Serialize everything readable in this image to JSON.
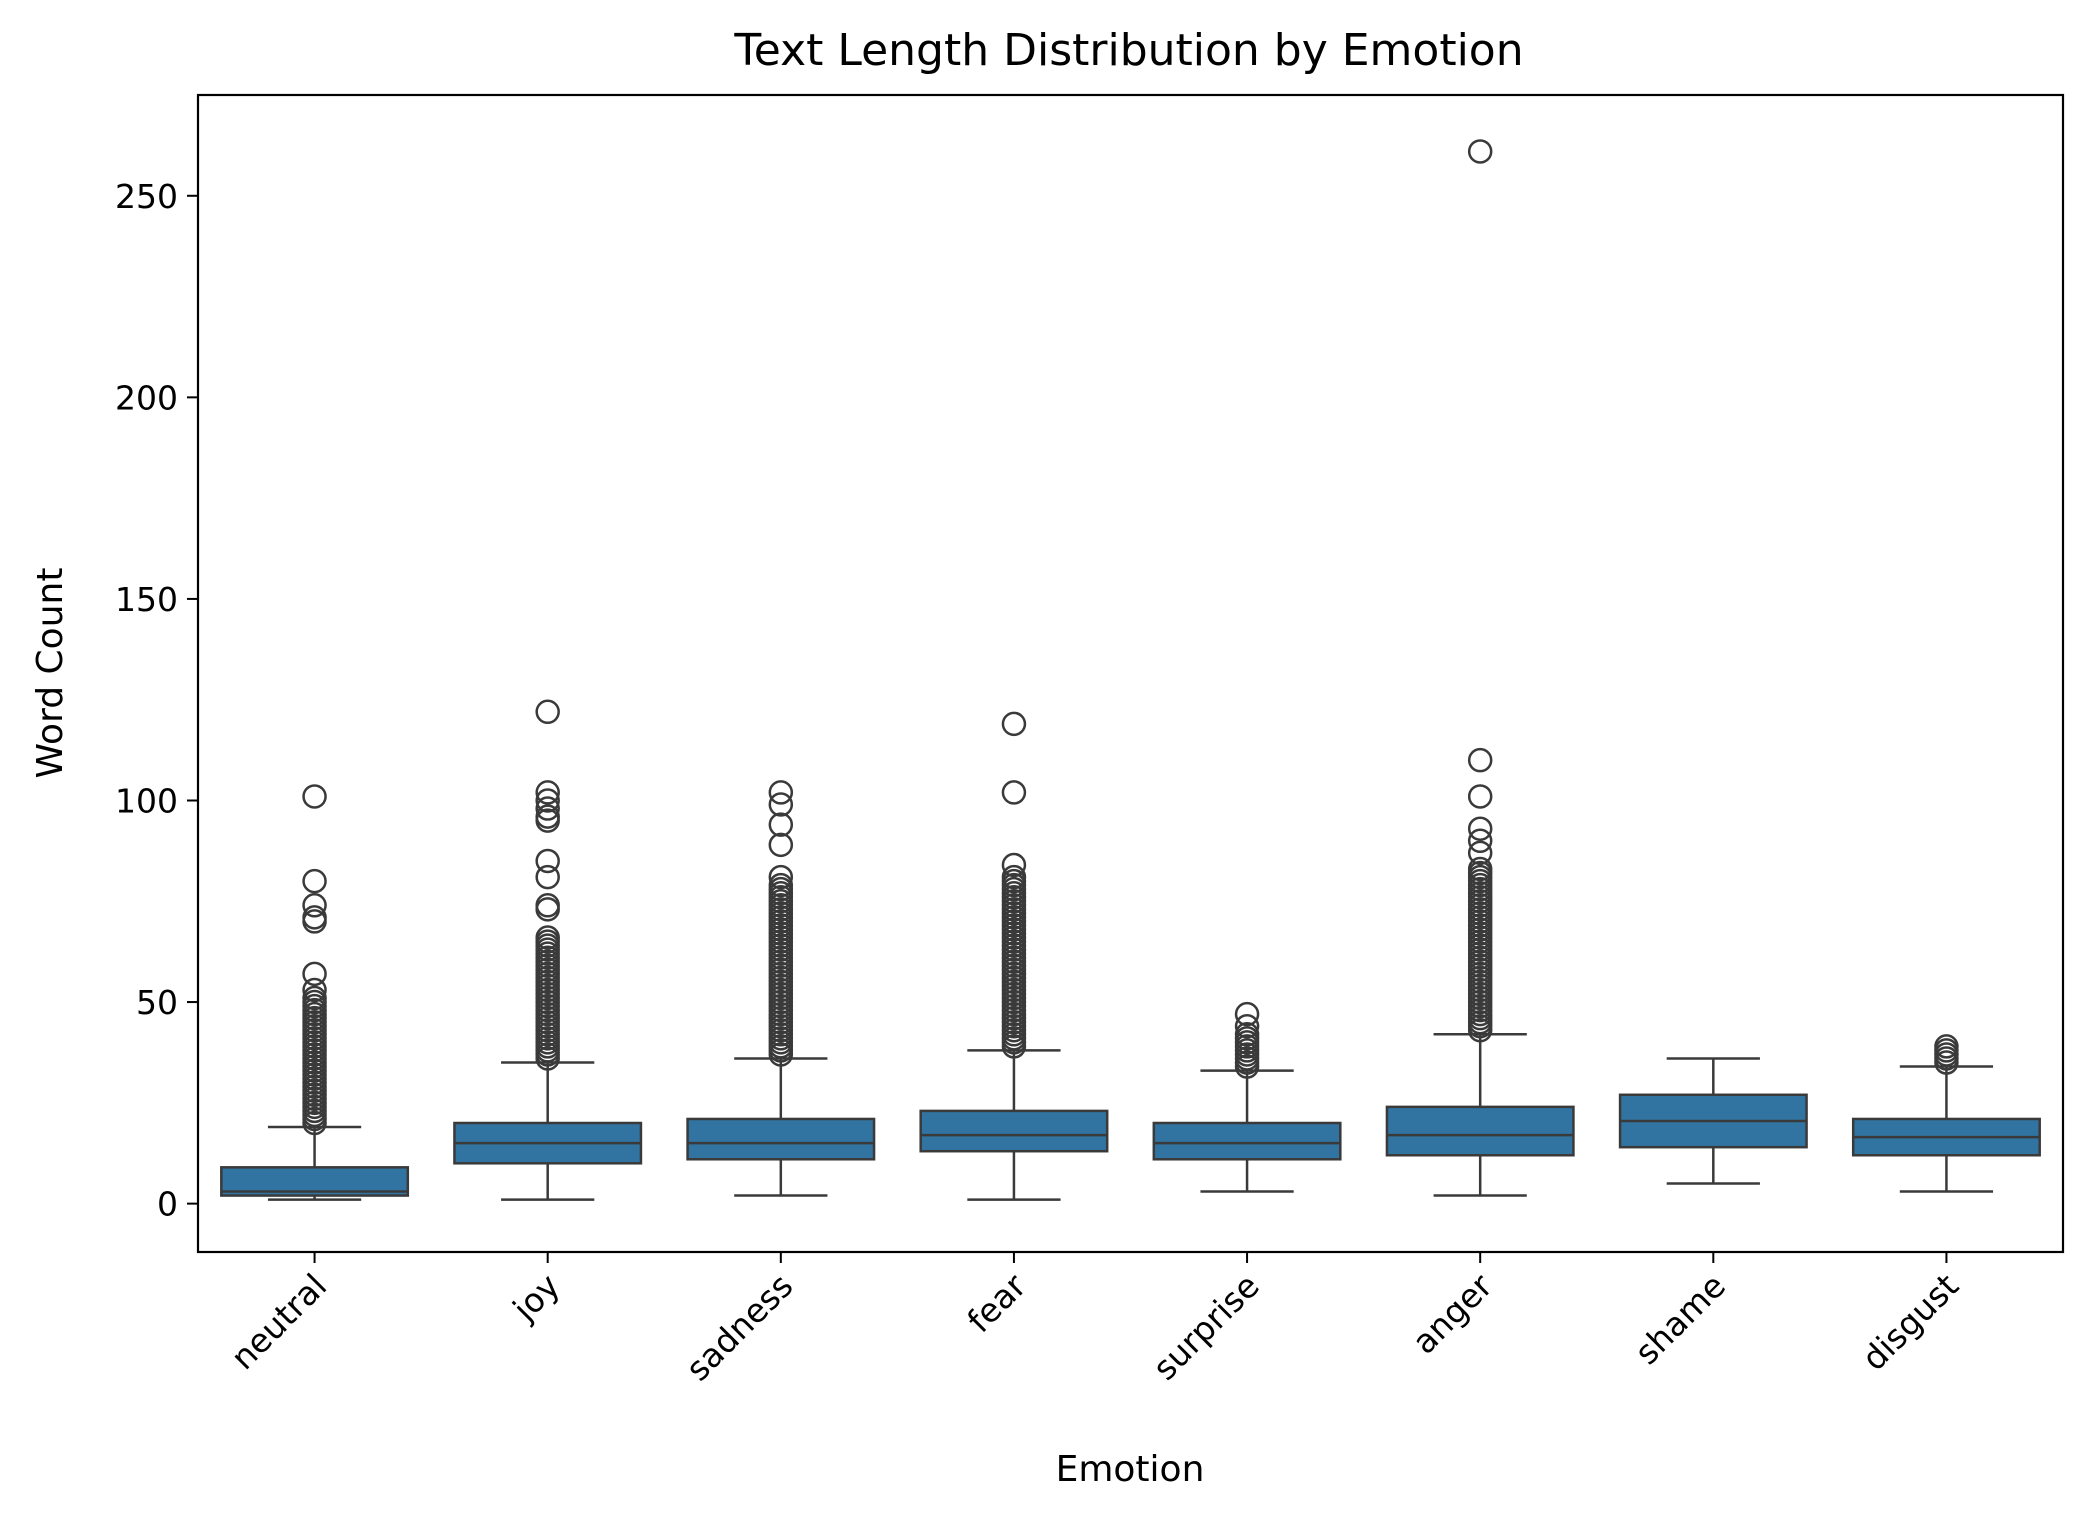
{
  "chart_data": {
    "type": "box",
    "title": "Text Length Distribution by Emotion",
    "xlabel": "Emotion",
    "ylabel": "Word Count",
    "ylim": [
      -12,
      275
    ],
    "yticks": [
      0,
      50,
      100,
      150,
      200,
      250
    ],
    "grid": false,
    "colors": {
      "box_fill": "#3274a1",
      "box_line": "#3a3a3a"
    },
    "categories": [
      "neutral",
      "joy",
      "sadness",
      "fear",
      "surprise",
      "anger",
      "shame",
      "disgust"
    ],
    "boxes": [
      {
        "category": "neutral",
        "whisker_low": 1,
        "q1": 2,
        "median": 3,
        "q3": 9,
        "whisker_high": 19,
        "outliers": [
          101,
          80,
          74,
          71,
          70,
          57,
          53,
          51,
          50,
          49,
          48,
          47,
          46,
          45,
          44,
          43,
          42,
          41,
          40,
          39,
          38,
          37,
          36,
          35,
          34,
          33,
          32,
          31,
          30,
          29,
          28,
          27,
          26,
          25,
          24,
          23,
          22,
          21,
          20
        ]
      },
      {
        "category": "joy",
        "whisker_low": 1,
        "q1": 10,
        "median": 15,
        "q3": 20,
        "whisker_high": 35,
        "outliers": [
          122,
          102,
          100,
          98,
          96,
          95,
          85,
          81,
          74,
          73,
          66,
          65,
          64,
          63,
          62,
          61,
          60,
          59,
          58,
          57,
          56,
          55,
          54,
          53,
          52,
          51,
          50,
          49,
          48,
          47,
          46,
          45,
          44,
          43,
          42,
          41,
          40,
          39,
          38,
          37,
          36
        ]
      },
      {
        "category": "sadness",
        "whisker_low": 2,
        "q1": 11,
        "median": 15,
        "q3": 21,
        "whisker_high": 36,
        "outliers": [
          102,
          99,
          94,
          89,
          81,
          79,
          78,
          77,
          76,
          75,
          74,
          73,
          72,
          71,
          70,
          69,
          68,
          67,
          66,
          65,
          64,
          63,
          62,
          61,
          60,
          59,
          58,
          57,
          56,
          55,
          54,
          53,
          52,
          51,
          50,
          49,
          48,
          47,
          46,
          45,
          44,
          43,
          42,
          41,
          40,
          39,
          38,
          37
        ]
      },
      {
        "category": "fear",
        "whisker_low": 1,
        "q1": 13,
        "median": 17,
        "q3": 23,
        "whisker_high": 38,
        "outliers": [
          119,
          102,
          84,
          81,
          80,
          79,
          78,
          77,
          76,
          75,
          74,
          73,
          72,
          71,
          70,
          69,
          68,
          67,
          66,
          65,
          64,
          63,
          62,
          61,
          60,
          59,
          58,
          57,
          56,
          55,
          54,
          53,
          52,
          51,
          50,
          49,
          48,
          47,
          46,
          45,
          44,
          43,
          42,
          41,
          40,
          39
        ]
      },
      {
        "category": "surprise",
        "whisker_low": 3,
        "q1": 11,
        "median": 15,
        "q3": 20,
        "whisker_high": 33,
        "outliers": [
          47,
          44,
          42,
          41,
          40,
          39,
          38,
          37,
          36,
          35,
          34
        ]
      },
      {
        "category": "anger",
        "whisker_low": 2,
        "q1": 12,
        "median": 17,
        "q3": 24,
        "whisker_high": 42,
        "outliers": [
          261,
          110,
          101,
          93,
          90,
          87,
          83,
          82,
          81,
          80,
          79,
          78,
          77,
          76,
          75,
          74,
          73,
          72,
          71,
          70,
          69,
          68,
          67,
          66,
          65,
          64,
          63,
          62,
          61,
          60,
          59,
          58,
          57,
          56,
          55,
          54,
          53,
          52,
          51,
          50,
          49,
          48,
          47,
          46,
          45,
          44,
          43
        ]
      },
      {
        "category": "shame",
        "whisker_low": 5,
        "q1": 14,
        "median": 20.5,
        "q3": 27,
        "whisker_high": 36,
        "outliers": []
      },
      {
        "category": "disgust",
        "whisker_low": 3,
        "q1": 12,
        "median": 16.5,
        "q3": 21,
        "whisker_high": 34,
        "outliers": [
          39,
          38,
          37,
          36,
          35
        ]
      }
    ]
  }
}
